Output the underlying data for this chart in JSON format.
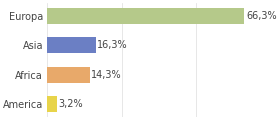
{
  "categories": [
    "Europa",
    "Asia",
    "Africa",
    "America"
  ],
  "values": [
    66.3,
    16.3,
    14.3,
    3.2
  ],
  "colors": [
    "#b5c98a",
    "#6b7fc4",
    "#e8a96a",
    "#e8d44a"
  ],
  "bar_labels": [
    "66,3%",
    "16,3%",
    "14,3%",
    "3,2%"
  ],
  "background_color": "#ffffff",
  "xlim": [
    0,
    75
  ],
  "bar_height": 0.55,
  "label_fontsize": 7.0,
  "tick_fontsize": 7.0,
  "figsize": [
    2.8,
    1.2
  ],
  "dpi": 100
}
